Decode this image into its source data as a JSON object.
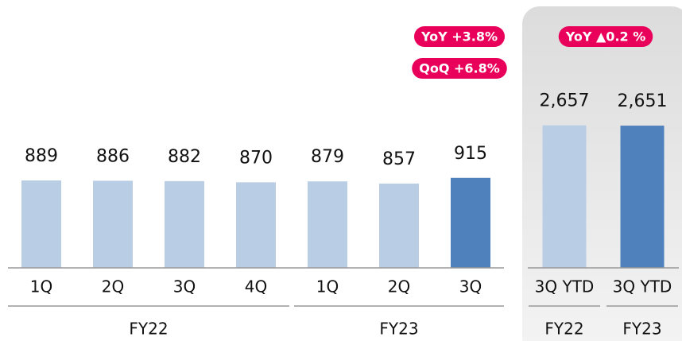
{
  "chart_data": [
    {
      "type": "bar",
      "ylim": [
        0,
        2400
      ],
      "groups": [
        {
          "label": "FY22",
          "categories": [
            "1Q",
            "2Q",
            "3Q",
            "4Q"
          ],
          "values": [
            889,
            886,
            882,
            870
          ],
          "colors": [
            "#b9cde5",
            "#b9cde5",
            "#b9cde5",
            "#b9cde5"
          ]
        },
        {
          "label": "FY23",
          "categories": [
            "1Q",
            "2Q",
            "3Q"
          ],
          "values": [
            879,
            857,
            915
          ],
          "colors": [
            "#b9cde5",
            "#b9cde5",
            "#4f81bd"
          ]
        }
      ],
      "annotations": [
        "YoY +3.8%",
        "QoQ +6.8%"
      ],
      "annotation_color": "#e8005a"
    },
    {
      "type": "bar",
      "ylim": [
        0,
        4400
      ],
      "groups": [
        {
          "label": "FY22",
          "categories": [
            "3Q YTD"
          ],
          "values": [
            2657
          ],
          "value_labels": [
            "2,657"
          ],
          "colors": [
            "#b9cde5"
          ]
        },
        {
          "label": "FY23",
          "categories": [
            "3Q YTD"
          ],
          "values": [
            2651
          ],
          "value_labels": [
            "2,651"
          ],
          "colors": [
            "#4f81bd"
          ]
        }
      ],
      "annotations": [
        "YoY ▲0.2 %"
      ],
      "annotation_color": "#e8005a"
    }
  ]
}
